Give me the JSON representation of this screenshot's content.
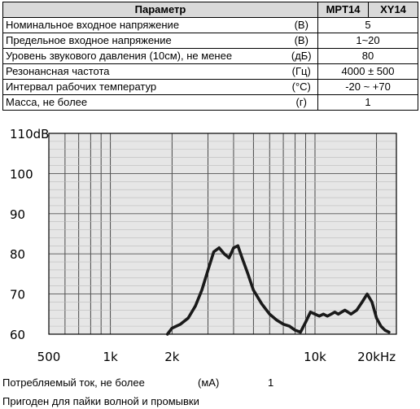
{
  "table": {
    "headers": [
      "Параметр",
      "MPT14",
      "XY14"
    ],
    "rows": [
      {
        "name": "Номинальное входное напряжение",
        "unit": "(В)",
        "value": "5"
      },
      {
        "name": "Предельное входное напряжение",
        "unit": "(В)",
        "value": "1~20"
      },
      {
        "name": "Уровень звукового давления (10см), не менее",
        "unit": "(дБ)",
        "value": "80"
      },
      {
        "name": "Резонансная частота",
        "unit": "(Гц)",
        "value": "4000 ± 500"
      },
      {
        "name": "Интервал рабочих температур",
        "unit": "(°C)",
        "value": "-20 ~ +70"
      },
      {
        "name": "Масса, не более",
        "unit": "(г)",
        "value": "1"
      }
    ]
  },
  "chart_data": {
    "type": "line",
    "x_scale": "log",
    "xlim": [
      500,
      25000
    ],
    "ylim": [
      60,
      110
    ],
    "x_ticks": [
      {
        "value": 500,
        "label": "500"
      },
      {
        "value": 1000,
        "label": "1k"
      },
      {
        "value": 2000,
        "label": "2k"
      },
      {
        "value": 10000,
        "label": "10k"
      },
      {
        "value": 20000,
        "label": "20kHz"
      }
    ],
    "y_ticks": [
      {
        "value": 110,
        "label": "110dB"
      },
      {
        "value": 100,
        "label": "100"
      },
      {
        "value": 90,
        "label": "90"
      },
      {
        "value": 80,
        "label": "80"
      },
      {
        "value": 70,
        "label": "70"
      },
      {
        "value": 60,
        "label": "60"
      }
    ],
    "grid": true,
    "series": [
      {
        "x": [
          1900,
          2000,
          2200,
          2400,
          2600,
          2800,
          3000,
          3200,
          3400,
          3600,
          3800,
          4000,
          4200,
          4400,
          4700,
          5000,
          5500,
          6000,
          6500,
          7000,
          7500,
          8000,
          8500,
          9000,
          9500,
          10000,
          10500,
          11000,
          11500,
          12000,
          12500,
          13000,
          14000,
          15000,
          16000,
          17000,
          18000,
          19000,
          20000,
          21000,
          22000,
          23000
        ],
        "y": [
          60,
          61.5,
          62.5,
          64,
          67,
          71,
          76,
          80.5,
          81.5,
          80,
          79,
          81.5,
          82,
          79,
          75,
          71,
          67.5,
          65,
          63.5,
          62.5,
          62,
          61,
          60.5,
          63,
          65.5,
          65,
          64.5,
          65,
          64.5,
          65,
          65.5,
          65,
          66,
          65,
          66,
          68,
          70,
          68,
          64,
          62,
          61,
          60.5
        ]
      }
    ]
  },
  "footer": {
    "current_label": "Потребляемый ток, не более",
    "current_unit": "(мА)",
    "current_value": "1",
    "note": "Пригоден для пайки волной и промывки"
  }
}
